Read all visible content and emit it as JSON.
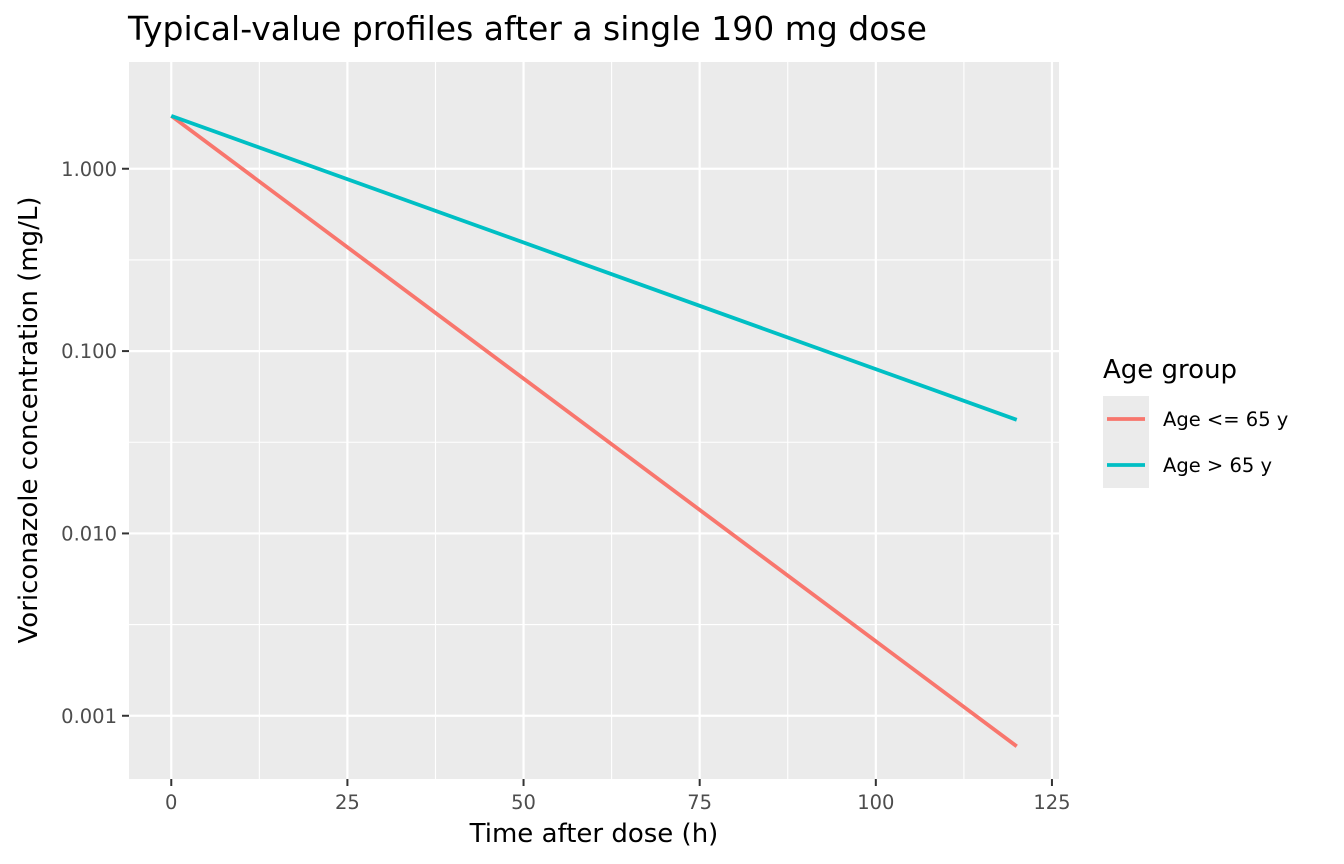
{
  "chart_data": {
    "type": "line",
    "title": "Typical-value profiles after a single 190 mg dose",
    "xlabel": "Time after dose (h)",
    "ylabel": "Voriconazole concentration (mg/L)",
    "x_scale": "linear",
    "y_scale": "log10",
    "xlim": [
      -6,
      126
    ],
    "ylim": [
      0.00045,
      3.85
    ],
    "x_ticks": [
      0,
      25,
      50,
      75,
      100,
      125
    ],
    "x_tick_labels": [
      "0",
      "25",
      "50",
      "75",
      "100",
      "125"
    ],
    "y_ticks": [
      0.001,
      0.01,
      0.1,
      1
    ],
    "y_tick_labels": [
      "0.001",
      "0.010",
      "0.100",
      "1.000"
    ],
    "grid": true,
    "legend": {
      "title": "Age group",
      "position": "right"
    },
    "series": [
      {
        "name": "Age <= 65 y",
        "color": "#F8766D",
        "x": [
          0,
          120
        ],
        "y": [
          1.95,
          0.00068
        ]
      },
      {
        "name": "Age > 65 y",
        "color": "#00BFC4",
        "x": [
          0,
          120
        ],
        "y": [
          1.95,
          0.042
        ]
      }
    ]
  }
}
